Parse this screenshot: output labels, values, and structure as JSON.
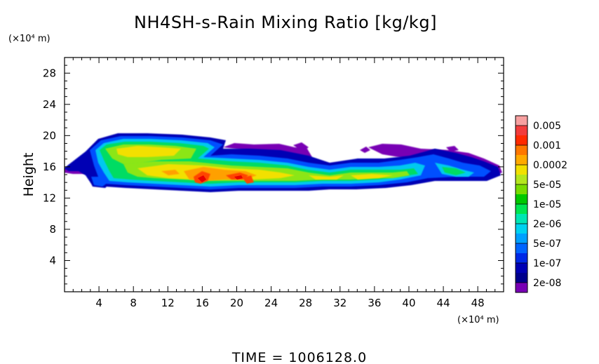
{
  "chart_data": {
    "type": "heatmap",
    "title": "NH4SH-s-Rain Mixing Ratio [kg/kg]",
    "xlabel": "",
    "ylabel": "Height",
    "x_unit": "(×10⁴ m)",
    "y_unit": "(×10⁴ m)",
    "xlim": [
      0,
      51
    ],
    "ylim": [
      0,
      30
    ],
    "x_ticks": [
      4,
      8,
      12,
      16,
      20,
      24,
      28,
      32,
      36,
      40,
      44,
      48
    ],
    "y_ticks": [
      4,
      8,
      12,
      16,
      20,
      24,
      28
    ],
    "colorbar": {
      "labels": [
        "0.005",
        "0.001",
        "0.0002",
        "5e-05",
        "1e-05",
        "2e-06",
        "5e-07",
        "1e-07",
        "2e-08"
      ],
      "colors_top_to_bottom": [
        "#f7a0a0",
        "#f23c3c",
        "#ff2a00",
        "#ff7700",
        "#ffaa00",
        "#f2e000",
        "#b4e61e",
        "#78dc00",
        "#00c800",
        "#00e650",
        "#00e6b4",
        "#00d2f0",
        "#00a0ff",
        "#0064ff",
        "#0028e6",
        "#0000b4",
        "#00008c",
        "#7800b4"
      ]
    },
    "field_description_regions": [
      {
        "level": "2e-08",
        "x": [
          0,
          50.5
        ],
        "y": [
          13.2,
          20.2
        ]
      },
      {
        "level": "1e-05",
        "x": [
          3.5,
          40
        ],
        "y": [
          13.5,
          19.5
        ]
      },
      {
        "level": "0.0002",
        "x": [
          14.5,
          23
        ],
        "y": [
          13.5,
          16.2
        ]
      }
    ],
    "footer": "TIME =  1006128.0"
  }
}
